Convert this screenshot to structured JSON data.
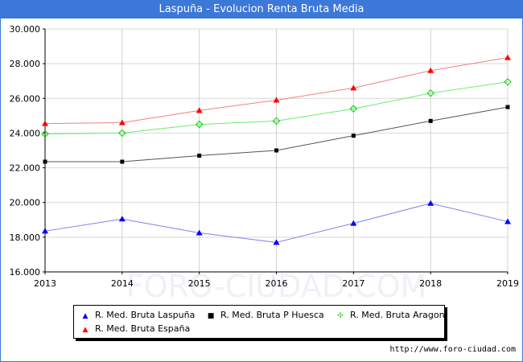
{
  "header": {
    "title": "Laspuña - Evolucion Renta Bruta Media"
  },
  "footer": {
    "url": "http://www.foro-ciudad.com"
  },
  "chart_data": {
    "type": "line",
    "title": "Laspuña - Evolucion Renta Bruta Media",
    "x": [
      "2013",
      "2014",
      "2015",
      "2016",
      "2017",
      "2018",
      "2019"
    ],
    "ylim": [
      16000,
      30000
    ],
    "yticks": [
      "16.000",
      "18.000",
      "20.000",
      "22.000",
      "24.000",
      "26.000",
      "28.000",
      "30.000"
    ],
    "grid": true,
    "legend_position": "bottom",
    "watermark": "FORO-CIUDAD.COM",
    "series": [
      {
        "name": "R. Med. Bruta Laspuña",
        "color": "#0000ff",
        "line_color": "#8080f0",
        "marker": "triangle",
        "values": [
          18350,
          19050,
          18250,
          17700,
          18800,
          19950,
          18900
        ]
      },
      {
        "name": "R. Med. Bruta P Huesca",
        "color": "#000000",
        "line_color": "#555555",
        "marker": "square",
        "values": [
          22350,
          22350,
          22700,
          23000,
          23850,
          24700,
          25500
        ]
      },
      {
        "name": "R. Med. Bruta Aragon",
        "color": "#00cc00",
        "line_color": "#66ee66",
        "marker": "diamond",
        "values": [
          23950,
          24000,
          24500,
          24700,
          25400,
          26300,
          26950
        ]
      },
      {
        "name": "R. Med. Bruta España",
        "color": "#ff0000",
        "line_color": "#f08080",
        "marker": "triangle",
        "values": [
          24550,
          24600,
          25300,
          25900,
          26600,
          27600,
          28350
        ]
      }
    ]
  }
}
